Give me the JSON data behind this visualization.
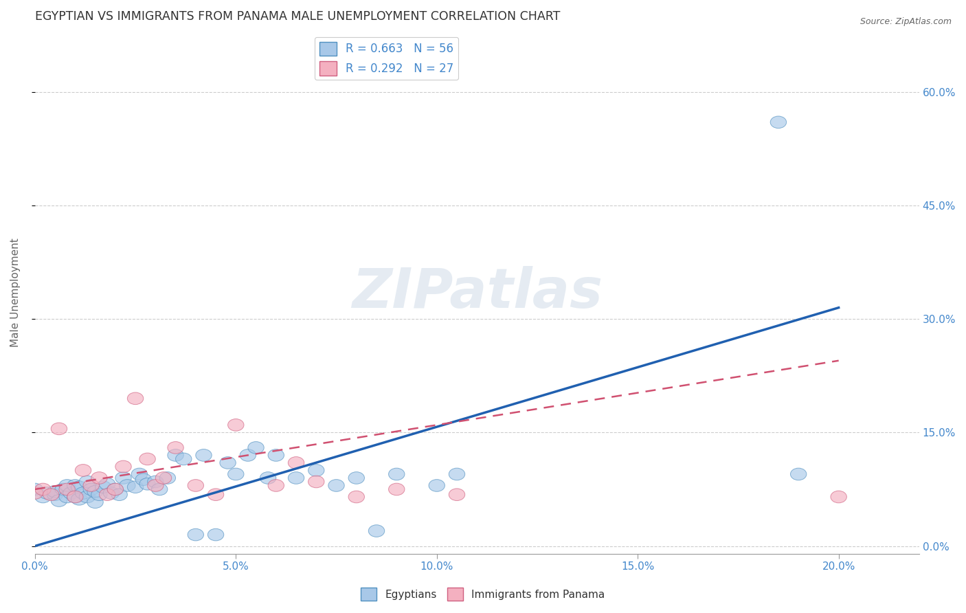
{
  "title": "EGYPTIAN VS IMMIGRANTS FROM PANAMA MALE UNEMPLOYMENT CORRELATION CHART",
  "source": "Source: ZipAtlas.com",
  "ylabel": "Male Unemployment",
  "xlabel_ticks": [
    "0.0%",
    "5.0%",
    "10.0%",
    "15.0%",
    "20.0%"
  ],
  "ylabel_ticks": [
    "0.0%",
    "15.0%",
    "30.0%",
    "45.0%",
    "60.0%"
  ],
  "xlim": [
    0.0,
    0.22
  ],
  "ylim": [
    -0.01,
    0.68
  ],
  "watermark_text": "ZIPatlas",
  "blue_color": "#a8c8e8",
  "pink_color": "#f4b0c0",
  "blue_edge_color": "#5090c0",
  "pink_edge_color": "#d06080",
  "blue_line_color": "#2060b0",
  "pink_line_color": "#d05070",
  "tick_color": "#4488cc",
  "egyptians_scatter_x": [
    0.0,
    0.002,
    0.003,
    0.005,
    0.005,
    0.006,
    0.007,
    0.008,
    0.008,
    0.009,
    0.01,
    0.01,
    0.011,
    0.011,
    0.012,
    0.013,
    0.013,
    0.014,
    0.015,
    0.015,
    0.016,
    0.017,
    0.018,
    0.019,
    0.02,
    0.021,
    0.022,
    0.023,
    0.025,
    0.026,
    0.027,
    0.028,
    0.03,
    0.031,
    0.033,
    0.035,
    0.037,
    0.04,
    0.042,
    0.045,
    0.048,
    0.05,
    0.053,
    0.055,
    0.058,
    0.06,
    0.065,
    0.07,
    0.075,
    0.08,
    0.085,
    0.09,
    0.1,
    0.105,
    0.185,
    0.19
  ],
  "egyptians_scatter_y": [
    0.075,
    0.065,
    0.07,
    0.068,
    0.072,
    0.06,
    0.075,
    0.065,
    0.08,
    0.07,
    0.065,
    0.08,
    0.062,
    0.078,
    0.07,
    0.065,
    0.085,
    0.075,
    0.058,
    0.072,
    0.068,
    0.078,
    0.082,
    0.07,
    0.075,
    0.068,
    0.09,
    0.08,
    0.078,
    0.095,
    0.088,
    0.082,
    0.085,
    0.075,
    0.09,
    0.12,
    0.115,
    0.015,
    0.12,
    0.015,
    0.11,
    0.095,
    0.12,
    0.13,
    0.09,
    0.12,
    0.09,
    0.1,
    0.08,
    0.09,
    0.02,
    0.095,
    0.08,
    0.095,
    0.56,
    0.095
  ],
  "panama_scatter_x": [
    0.0,
    0.002,
    0.004,
    0.006,
    0.008,
    0.01,
    0.012,
    0.014,
    0.016,
    0.018,
    0.02,
    0.022,
    0.025,
    0.028,
    0.03,
    0.032,
    0.035,
    0.04,
    0.045,
    0.05,
    0.06,
    0.065,
    0.07,
    0.08,
    0.09,
    0.105,
    0.2
  ],
  "panama_scatter_y": [
    0.07,
    0.075,
    0.068,
    0.155,
    0.075,
    0.065,
    0.1,
    0.08,
    0.09,
    0.068,
    0.075,
    0.105,
    0.195,
    0.115,
    0.08,
    0.09,
    0.13,
    0.08,
    0.068,
    0.16,
    0.08,
    0.11,
    0.085,
    0.065,
    0.075,
    0.068,
    0.065
  ],
  "blue_trendline": [
    0.0,
    0.0,
    0.2,
    0.315
  ],
  "pink_trendline": [
    0.0,
    0.075,
    0.2,
    0.245
  ]
}
